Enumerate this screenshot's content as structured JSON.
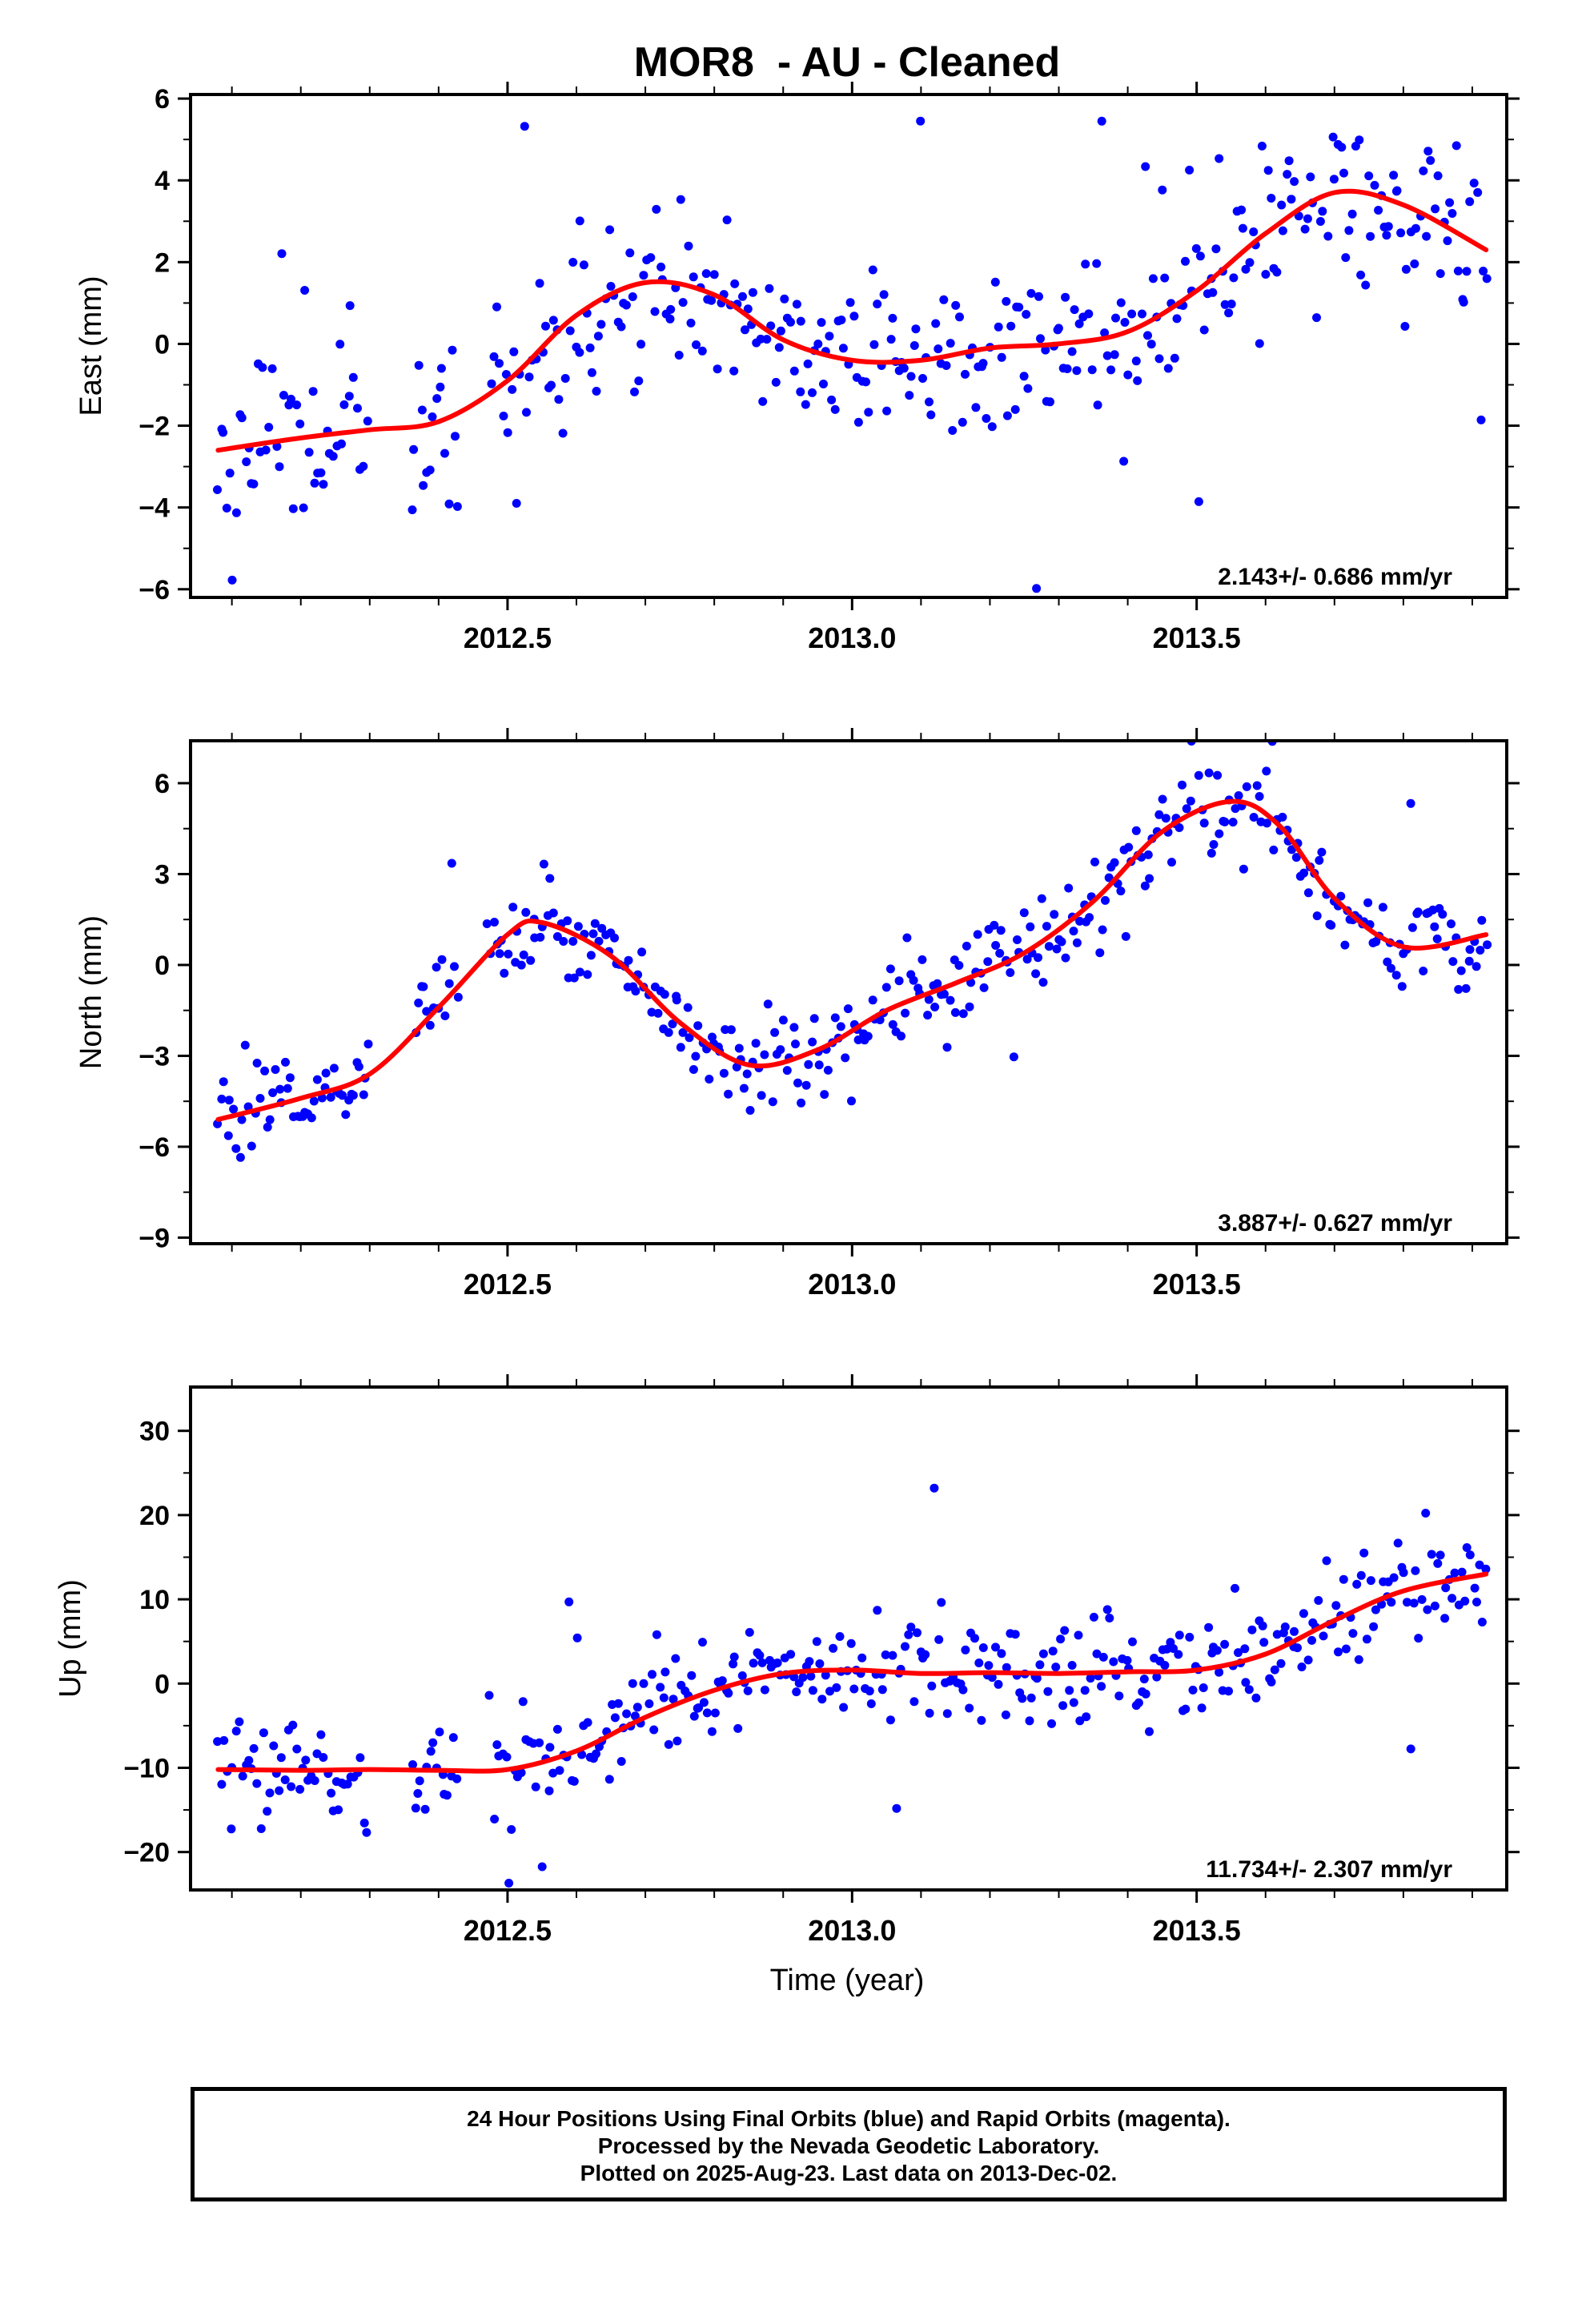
{
  "title": "MOR8  - AU - Cleaned",
  "xlabel": "Time (year)",
  "footer": {
    "line1": "24 Hour Positions Using Final Orbits (blue) and Rapid Orbits (magenta).",
    "line2": "Processed by the Nevada Geodetic Laboratory.",
    "line3": "Plotted on 2025-Aug-23. Last data on 2013-Dec-02."
  },
  "colors": {
    "points": "#0000ff",
    "fit": "#ff0000",
    "axes": "#000000"
  },
  "chart_data": [
    {
      "type": "scatter",
      "ylabel": "East (mm)",
      "rate_label": "2.143+/- 0.686 mm/yr",
      "xlim": [
        2012.04,
        2013.95
      ],
      "ylim": [
        -6.2,
        6.1
      ],
      "xticks": [
        2012.5,
        2013.0,
        2013.5
      ],
      "xtick_labels": [
        "2012.5",
        "2013.0",
        "2013.5"
      ],
      "yticks": [
        -6,
        -4,
        -2,
        0,
        2,
        4,
        6
      ],
      "ytick_labels": [
        "−6",
        "−4",
        "−2",
        "0",
        "2",
        "4",
        "6"
      ],
      "fit": {
        "name": "fit",
        "x": [
          2012.08,
          2012.2,
          2012.3,
          2012.4,
          2012.5,
          2012.6,
          2012.7,
          2012.8,
          2012.9,
          2013.0,
          2013.1,
          2013.2,
          2013.3,
          2013.4,
          2013.5,
          2013.6,
          2013.7,
          2013.8,
          2013.92
        ],
        "y": [
          -2.6,
          -2.3,
          -2.1,
          -1.9,
          -0.9,
          0.7,
          1.5,
          1.2,
          0.1,
          -0.4,
          -0.4,
          -0.1,
          0.0,
          0.3,
          1.3,
          2.7,
          3.7,
          3.4,
          2.3
        ]
      },
      "scatter_spec": {
        "n": 420,
        "seed": 11,
        "noise": 1.35,
        "outliers": 0.04
      }
    },
    {
      "type": "scatter",
      "ylabel": "North (mm)",
      "rate_label": "3.887+/- 0.627 mm/yr",
      "xlim": [
        2012.04,
        2013.95
      ],
      "ylim": [
        -9.2,
        7.4
      ],
      "xticks": [
        2012.5,
        2013.0,
        2013.5
      ],
      "xtick_labels": [
        "2012.5",
        "2013.0",
        "2013.5"
      ],
      "yticks": [
        -9,
        -6,
        -3,
        0,
        3,
        6
      ],
      "ytick_labels": [
        "−9",
        "−6",
        "−3",
        "0",
        "3",
        "6"
      ],
      "fit": {
        "name": "fit",
        "x": [
          2012.08,
          2012.2,
          2012.3,
          2012.4,
          2012.5,
          2012.55,
          2012.65,
          2012.75,
          2012.85,
          2012.95,
          2013.05,
          2013.15,
          2013.25,
          2013.35,
          2013.45,
          2013.55,
          2013.62,
          2013.7,
          2013.8,
          2013.92
        ],
        "y": [
          -5.1,
          -4.4,
          -3.6,
          -1.4,
          1.0,
          1.4,
          0.3,
          -1.9,
          -3.3,
          -2.8,
          -1.5,
          -0.6,
          0.4,
          2.1,
          4.4,
          5.4,
          4.6,
          2.2,
          0.6,
          1.0
        ]
      },
      "scatter_spec": {
        "n": 420,
        "seed": 29,
        "noise": 1.0,
        "outliers": 0.02
      }
    },
    {
      "type": "scatter",
      "ylabel": "Up (mm)",
      "rate_label": "11.734+/- 2.307 mm/yr",
      "xlim": [
        2012.04,
        2013.95
      ],
      "ylim": [
        -24.5,
        35.2
      ],
      "xticks": [
        2012.5,
        2013.0,
        2013.5
      ],
      "xtick_labels": [
        "2012.5",
        "2013.0",
        "2013.5"
      ],
      "yticks": [
        -20,
        -10,
        0,
        10,
        20,
        30
      ],
      "ytick_labels": [
        "−20",
        "−10",
        "0",
        "10",
        "20",
        "30"
      ],
      "fit": {
        "name": "fit",
        "x": [
          2012.08,
          2012.2,
          2012.3,
          2012.4,
          2012.5,
          2012.6,
          2012.7,
          2012.8,
          2012.9,
          2013.0,
          2013.1,
          2013.2,
          2013.3,
          2013.4,
          2013.5,
          2013.6,
          2013.7,
          2013.8,
          2013.92
        ],
        "y": [
          -10.2,
          -10.3,
          -10.2,
          -10.3,
          -10.2,
          -8.0,
          -4.0,
          -0.8,
          1.2,
          1.6,
          1.2,
          1.3,
          1.2,
          1.4,
          1.6,
          3.5,
          7.5,
          11.0,
          13.0
        ]
      },
      "scatter_spec": {
        "n": 420,
        "seed": 47,
        "noise": 4.0,
        "outliers": 0.03
      }
    }
  ]
}
